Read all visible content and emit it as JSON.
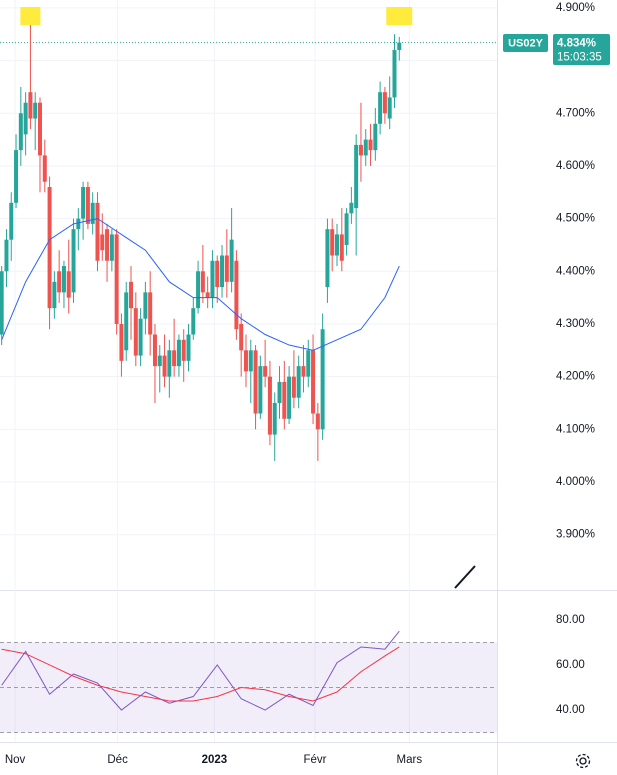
{
  "chart_data": [
    {
      "type": "candlestick",
      "symbol": "US02Y",
      "last_price": "4.834%",
      "countdown": "15:03:35",
      "last_value": 4.834,
      "up_color": "#26a69a",
      "down_color": "#ef5350",
      "open": [
        4.28,
        4.4,
        4.46,
        4.53,
        4.63,
        4.66,
        4.74,
        4.69,
        4.72,
        4.62,
        4.56,
        4.33,
        4.4,
        4.36,
        4.4,
        4.36,
        4.48,
        4.5,
        4.56,
        4.49,
        4.53,
        4.47,
        4.48,
        4.42,
        4.47,
        4.3,
        4.25,
        4.38,
        4.33,
        4.24,
        4.31,
        4.36,
        4.28,
        4.22,
        4.24,
        4.2,
        4.25,
        4.22,
        4.27,
        4.23,
        4.28,
        4.33,
        4.4,
        4.36,
        4.35,
        4.42,
        4.37,
        4.43,
        4.38,
        4.42,
        4.3,
        4.25,
        4.21,
        4.25,
        4.13,
        4.22,
        4.2,
        4.09,
        4.15,
        4.19,
        4.12,
        4.2,
        4.16,
        4.22,
        4.2,
        4.25,
        4.13,
        4.1,
        4.37,
        4.48,
        4.43,
        4.47,
        4.45,
        4.51,
        4.52,
        4.64,
        4.62,
        4.65,
        4.63,
        4.68,
        4.74,
        4.69,
        4.73,
        4.82
      ],
      "high": [
        4.41,
        4.48,
        4.55,
        4.66,
        4.75,
        4.74,
        4.888,
        4.74,
        4.73,
        4.65,
        4.58,
        4.4,
        4.44,
        4.42,
        4.46,
        4.5,
        4.52,
        4.57,
        4.57,
        4.55,
        4.55,
        4.51,
        4.49,
        4.48,
        4.48,
        4.32,
        4.38,
        4.41,
        4.36,
        4.33,
        4.38,
        4.4,
        4.3,
        4.26,
        4.28,
        4.27,
        4.31,
        4.28,
        4.29,
        4.3,
        4.35,
        4.42,
        4.45,
        4.39,
        4.44,
        4.43,
        4.45,
        4.48,
        4.52,
        4.44,
        4.32,
        4.28,
        4.27,
        4.26,
        4.24,
        4.27,
        4.23,
        4.17,
        4.22,
        4.23,
        4.22,
        4.25,
        4.24,
        4.26,
        4.27,
        4.28,
        4.15,
        4.32,
        4.5,
        4.5,
        4.49,
        4.52,
        4.52,
        4.56,
        4.66,
        4.72,
        4.67,
        4.68,
        4.71,
        4.76,
        4.75,
        4.77,
        4.85,
        4.845
      ],
      "low": [
        4.26,
        4.37,
        4.42,
        4.52,
        4.6,
        4.62,
        4.67,
        4.63,
        4.55,
        4.55,
        4.29,
        4.31,
        4.34,
        4.33,
        4.32,
        4.34,
        4.44,
        4.46,
        4.48,
        4.47,
        4.4,
        4.42,
        4.38,
        4.4,
        4.28,
        4.2,
        4.23,
        4.27,
        4.22,
        4.22,
        4.28,
        4.24,
        4.15,
        4.17,
        4.18,
        4.16,
        4.2,
        4.2,
        4.19,
        4.21,
        4.27,
        4.32,
        4.34,
        4.33,
        4.33,
        4.34,
        4.35,
        4.35,
        4.36,
        4.27,
        4.2,
        4.18,
        4.15,
        4.1,
        4.12,
        4.18,
        4.07,
        4.04,
        4.12,
        4.1,
        4.11,
        4.14,
        4.14,
        4.17,
        4.18,
        4.11,
        4.04,
        4.08,
        4.34,
        4.4,
        4.41,
        4.4,
        4.43,
        4.49,
        4.43,
        4.57,
        4.6,
        4.6,
        4.61,
        4.66,
        4.68,
        4.67,
        4.71,
        4.8
      ],
      "close": [
        4.4,
        4.46,
        4.53,
        4.63,
        4.7,
        4.72,
        4.69,
        4.72,
        4.62,
        4.57,
        4.33,
        4.38,
        4.36,
        4.41,
        4.35,
        4.48,
        4.5,
        4.56,
        4.49,
        4.53,
        4.42,
        4.44,
        4.42,
        4.47,
        4.3,
        4.23,
        4.36,
        4.33,
        4.24,
        4.31,
        4.36,
        4.28,
        4.22,
        4.24,
        4.2,
        4.25,
        4.22,
        4.27,
        4.23,
        4.28,
        4.33,
        4.4,
        4.36,
        4.35,
        4.42,
        4.37,
        4.43,
        4.38,
        4.46,
        4.29,
        4.25,
        4.21,
        4.25,
        4.13,
        4.22,
        4.2,
        4.09,
        4.15,
        4.19,
        4.12,
        4.2,
        4.16,
        4.22,
        4.2,
        4.25,
        4.13,
        4.1,
        4.29,
        4.48,
        4.43,
        4.47,
        4.42,
        4.51,
        4.53,
        4.64,
        4.62,
        4.65,
        4.63,
        4.68,
        4.74,
        4.7,
        4.73,
        4.82,
        4.834
      ],
      "moving_average": {
        "color": "#2962ff",
        "x": [
          0,
          5,
          10,
          15,
          20,
          25,
          30,
          35,
          40,
          45,
          50,
          55,
          60,
          65,
          70,
          75,
          80,
          83
        ],
        "values": [
          4.27,
          4.38,
          4.46,
          4.49,
          4.5,
          4.47,
          4.44,
          4.38,
          4.35,
          4.35,
          4.31,
          4.28,
          4.26,
          4.25,
          4.27,
          4.29,
          4.35,
          4.41
        ]
      },
      "ylim": [
        3.795,
        4.915
      ],
      "yticks": [
        {
          "value": 4.9,
          "label": "4.900%"
        },
        {
          "value": 4.8,
          "label": "4.800%"
        },
        {
          "value": 4.7,
          "label": "4.700%"
        },
        {
          "value": 4.6,
          "label": "4.600%"
        },
        {
          "value": 4.5,
          "label": "4.500%"
        },
        {
          "value": 4.4,
          "label": "4.400%"
        },
        {
          "value": 4.3,
          "label": "4.300%"
        },
        {
          "value": 4.2,
          "label": "4.200%"
        },
        {
          "value": 4.1,
          "label": "4.100%"
        },
        {
          "value": 4.0,
          "label": "4.000%"
        },
        {
          "value": 3.9,
          "label": "3.900%"
        }
      ],
      "xlim": [
        -0.35,
        103.4
      ],
      "xticks": [
        {
          "value": 2.8,
          "label": "Nov"
        },
        {
          "value": 24.2,
          "label": "Déc"
        },
        {
          "value": 44.4,
          "label": "2023"
        },
        {
          "value": 65.4,
          "label": "Févr"
        },
        {
          "value": 85.1,
          "label": "Mars"
        }
      ],
      "grid": true
    },
    {
      "type": "line",
      "x": [
        0,
        5,
        10,
        15,
        20,
        25,
        30,
        35,
        40,
        45,
        50,
        55,
        60,
        65,
        70,
        75,
        80,
        83
      ],
      "series": [
        {
          "color": "#7e57c2",
          "values": [
            51,
            66,
            47,
            56,
            52,
            40,
            48,
            43,
            46,
            60,
            45,
            40,
            47,
            42,
            61,
            68,
            67,
            75
          ]
        },
        {
          "color": "#f23645",
          "values": [
            67,
            65,
            60,
            55,
            51,
            48,
            46,
            44,
            44,
            46,
            50,
            49,
            46,
            44,
            48,
            57,
            64,
            68
          ]
        }
      ],
      "ylim": [
        25.8,
        92.4
      ],
      "yticks": [
        {
          "value": 80,
          "label": "80.00"
        },
        {
          "value": 60,
          "label": "60.00"
        },
        {
          "value": 40,
          "label": "40.00"
        }
      ],
      "band": [
        30,
        70
      ],
      "midline": 50
    }
  ]
}
